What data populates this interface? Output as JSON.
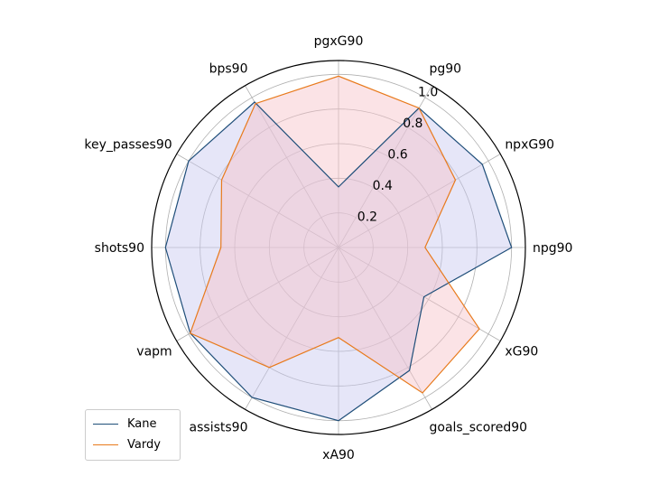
{
  "chart_data": {
    "type": "radar",
    "categories": [
      "npg90",
      "npxG90",
      "pg90",
      "pgxG90",
      "bps90",
      "key_passes90",
      "shots90",
      "vapm",
      "assists90",
      "xA90",
      "goals_scored90",
      "xG90"
    ],
    "radial_ticks": [
      "0.2",
      "0.4",
      "0.6",
      "0.8",
      "1.0"
    ],
    "rmax": 1.08,
    "grid": true,
    "legend_position": "lower-left",
    "series": [
      {
        "name": "Kane",
        "color": "#1f4e79",
        "fill": "#c8c8f0",
        "values": [
          1.0,
          0.96,
          0.93,
          0.35,
          0.97,
          1.0,
          1.0,
          0.99,
          1.0,
          1.0,
          0.82,
          0.57
        ]
      },
      {
        "name": "Vardy",
        "color": "#e87a1c",
        "fill": "#f7c2c8",
        "values": [
          0.5,
          0.78,
          0.93,
          0.99,
          0.96,
          0.78,
          0.68,
          0.99,
          0.8,
          0.52,
          0.97,
          0.94
        ]
      }
    ]
  }
}
